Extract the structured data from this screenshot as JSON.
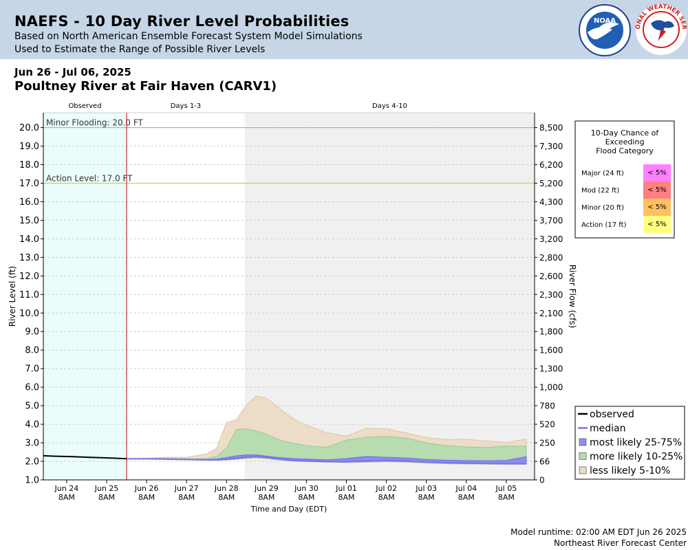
{
  "header": {
    "title": "NAEFS - 10 Day River Level Probabilities",
    "subtitle1": "Based on North American Ensemble Forecast System Model Simulations",
    "subtitle2": "Used to Estimate the Range of Possible River Levels",
    "date_range": "Jun 26 - Jul 06, 2025",
    "gauge_name": "Poultney River at Fair Haven (CARV1)",
    "noaa_logo_text": "NOAA",
    "nws_logo_text": "NATIONAL WEATHER SERVICE"
  },
  "footer": {
    "runtime": "Model runtime: 02:00 AM EDT Jun 26 2025",
    "center": "Northeast River Forecast Center"
  },
  "colors": {
    "observed_shade": "#eafcfc",
    "days4_10_shade": "#f0f0f0",
    "observed_line": "#000000",
    "median_line": "#7777ee",
    "band_25_75": "#8c8cf2",
    "band_10_25": "#b6dcb0",
    "band_5_10": "#ecdcc8",
    "minor_line": "#e8a060",
    "action_line": "#e0d020",
    "now_line": "#cc0000"
  },
  "chart_data": {
    "type": "area",
    "xlabel": "Time and Day (EDT)",
    "ylabel": "River Level (ft)",
    "ylabel_right": "River Flow (cfs)",
    "ylim": [
      1.0,
      20.8
    ],
    "xlim": [
      "2025-06-23T18:00",
      "2025-07-06T01:00"
    ],
    "grid": true,
    "period_labels": [
      {
        "label": "Observed",
        "start": "2025-06-23T18:00",
        "end": "2025-06-25T20:00"
      },
      {
        "label": "Days 1-3",
        "start": "2025-06-25T20:00",
        "end": "2025-06-28T19:00"
      },
      {
        "label": "Days 4-10",
        "start": "2025-06-28T19:00",
        "end": "2025-07-06T01:00"
      }
    ],
    "forecast_start": "2025-06-25T20:00",
    "x_ticks": [
      {
        "t": "2025-06-24T08:00",
        "day": "Jun 24",
        "hour": "8AM"
      },
      {
        "t": "2025-06-25T08:00",
        "day": "Jun 25",
        "hour": "8AM"
      },
      {
        "t": "2025-06-26T08:00",
        "day": "Jun 26",
        "hour": "8AM"
      },
      {
        "t": "2025-06-27T08:00",
        "day": "Jun 27",
        "hour": "8AM"
      },
      {
        "t": "2025-06-28T08:00",
        "day": "Jun 28",
        "hour": "8AM"
      },
      {
        "t": "2025-06-29T08:00",
        "day": "Jun 29",
        "hour": "8AM"
      },
      {
        "t": "2025-06-30T08:00",
        "day": "Jun 30",
        "hour": "8AM"
      },
      {
        "t": "2025-07-01T08:00",
        "day": "Jul 01",
        "hour": "8AM"
      },
      {
        "t": "2025-07-02T08:00",
        "day": "Jul 02",
        "hour": "8AM"
      },
      {
        "t": "2025-07-03T08:00",
        "day": "Jul 03",
        "hour": "8AM"
      },
      {
        "t": "2025-07-04T08:00",
        "day": "Jul 04",
        "hour": "8AM"
      },
      {
        "t": "2025-07-05T08:00",
        "day": "Jul 05",
        "hour": "8AM"
      }
    ],
    "y_ticks_left": [
      "1.0",
      "2.0",
      "3.0",
      "4.0",
      "5.0",
      "6.0",
      "7.0",
      "8.0",
      "9.0",
      "10.0",
      "11.0",
      "12.0",
      "13.0",
      "14.0",
      "15.0",
      "16.0",
      "17.0",
      "18.0",
      "19.0",
      "20.0"
    ],
    "y_ticks_right": [
      {
        "stage": 1.0,
        "flow": "0"
      },
      {
        "stage": 2.0,
        "flow": "66"
      },
      {
        "stage": 3.0,
        "flow": "250"
      },
      {
        "stage": 4.0,
        "flow": "520"
      },
      {
        "stage": 5.0,
        "flow": "780"
      },
      {
        "stage": 6.0,
        "flow": "1,000"
      },
      {
        "stage": 7.0,
        "flow": "1,300"
      },
      {
        "stage": 8.0,
        "flow": "1,600"
      },
      {
        "stage": 9.0,
        "flow": "1,800"
      },
      {
        "stage": 10.0,
        "flow": "2,100"
      },
      {
        "stage": 11.0,
        "flow": "2,300"
      },
      {
        "stage": 12.0,
        "flow": "2,600"
      },
      {
        "stage": 13.0,
        "flow": "2,800"
      },
      {
        "stage": 14.0,
        "flow": "3,200"
      },
      {
        "stage": 15.0,
        "flow": "3,700"
      },
      {
        "stage": 16.0,
        "flow": "4,300"
      },
      {
        "stage": 17.0,
        "flow": "5,200"
      },
      {
        "stage": 18.0,
        "flow": "6,200"
      },
      {
        "stage": 19.0,
        "flow": "7,300"
      },
      {
        "stage": 20.0,
        "flow": "8,500"
      }
    ],
    "thresholds": [
      {
        "label": "Minor Flooding: 20.0 FT",
        "stage": 20.0,
        "color": "#e8a060"
      },
      {
        "label": "Action Level: 17.0 FT",
        "stage": 17.0,
        "color": "#e0d020"
      }
    ],
    "observed": {
      "name": "observed",
      "x": [
        "2025-06-23T18:00",
        "2025-06-24T00:00",
        "2025-06-24T12:00",
        "2025-06-25T00:00",
        "2025-06-25T12:00",
        "2025-06-25T20:00"
      ],
      "y": [
        2.3,
        2.28,
        2.25,
        2.21,
        2.17,
        2.14
      ]
    },
    "forecast_x": [
      "2025-06-25T20:00",
      "2025-06-26T08:00",
      "2025-06-26T20:00",
      "2025-06-27T08:00",
      "2025-06-27T20:00",
      "2025-06-28T02:00",
      "2025-06-28T08:00",
      "2025-06-28T14:00",
      "2025-06-28T20:00",
      "2025-06-29T02:00",
      "2025-06-29T08:00",
      "2025-06-29T14:00",
      "2025-06-29T20:00",
      "2025-06-30T02:00",
      "2025-06-30T08:00",
      "2025-06-30T20:00",
      "2025-07-01T08:00",
      "2025-07-01T20:00",
      "2025-07-02T08:00",
      "2025-07-02T20:00",
      "2025-07-03T08:00",
      "2025-07-03T20:00",
      "2025-07-04T08:00",
      "2025-07-04T20:00",
      "2025-07-05T08:00",
      "2025-07-05T20:00"
    ],
    "median": {
      "name": "median",
      "y": [
        2.14,
        2.14,
        2.12,
        2.1,
        2.08,
        2.08,
        2.1,
        2.17,
        2.23,
        2.26,
        2.22,
        2.14,
        2.08,
        2.04,
        2.02,
        1.99,
        1.98,
        2.02,
        2.05,
        2.02,
        1.97,
        1.93,
        1.91,
        1.89,
        1.88,
        1.88
      ]
    },
    "bands": [
      {
        "name": "less likely 5-10%",
        "color": "#ecdcc8",
        "border": "#e0c4a8",
        "low": [
          2.14,
          2.14,
          2.11,
          2.08,
          2.06,
          2.06,
          2.07,
          2.1,
          2.15,
          2.18,
          2.14,
          2.09,
          2.03,
          2.0,
          1.98,
          1.95,
          1.93,
          1.95,
          1.97,
          1.95,
          1.9,
          1.87,
          1.85,
          1.84,
          1.83,
          1.83
        ],
        "high": [
          2.14,
          2.17,
          2.22,
          2.22,
          2.4,
          2.7,
          4.1,
          4.25,
          5.05,
          5.52,
          5.4,
          5.0,
          4.55,
          4.2,
          3.95,
          3.55,
          3.36,
          3.78,
          3.75,
          3.53,
          3.28,
          3.18,
          3.19,
          3.1,
          3.02,
          3.2
        ]
      },
      {
        "name": "more likely 10-25%",
        "color": "#b6dcb0",
        "border": "#9cc896",
        "low": [
          2.14,
          2.14,
          2.11,
          2.09,
          2.07,
          2.07,
          2.08,
          2.12,
          2.18,
          2.21,
          2.17,
          2.11,
          2.05,
          2.02,
          2.0,
          1.97,
          1.95,
          1.98,
          2.0,
          1.98,
          1.93,
          1.89,
          1.87,
          1.86,
          1.85,
          1.85
        ],
        "high": [
          2.14,
          2.15,
          2.16,
          2.14,
          2.14,
          2.26,
          2.7,
          3.72,
          3.75,
          3.64,
          3.45,
          3.22,
          3.05,
          2.95,
          2.85,
          2.75,
          3.15,
          3.3,
          3.35,
          3.25,
          3.0,
          2.85,
          2.78,
          2.75,
          2.82,
          2.82
        ]
      },
      {
        "name": "most likely 25-75%",
        "color": "#8c8cf2",
        "border": "#6a6ae8",
        "low": [
          2.14,
          2.14,
          2.11,
          2.1,
          2.07,
          2.07,
          2.09,
          2.14,
          2.2,
          2.23,
          2.19,
          2.12,
          2.06,
          2.03,
          2.01,
          1.98,
          1.96,
          1.99,
          2.02,
          1.99,
          1.94,
          1.9,
          1.88,
          1.87,
          1.86,
          1.86
        ],
        "high": [
          2.14,
          2.14,
          2.13,
          2.12,
          2.1,
          2.12,
          2.2,
          2.3,
          2.35,
          2.35,
          2.28,
          2.22,
          2.18,
          2.14,
          2.12,
          2.08,
          2.15,
          2.26,
          2.22,
          2.18,
          2.1,
          2.06,
          2.04,
          2.03,
          2.05,
          2.25
        ]
      }
    ],
    "legend": {
      "placement": "bottom-right",
      "entries": [
        {
          "label": "observed",
          "kind": "line",
          "color": "#000000"
        },
        {
          "label": "median",
          "kind": "line",
          "color": "#7777ee"
        },
        {
          "label": "most likely 25-75%",
          "kind": "box",
          "color": "#8c8cf2"
        },
        {
          "label": "more likely 10-25%",
          "kind": "box",
          "color": "#b6dcb0"
        },
        {
          "label": "less likely 5-10%",
          "kind": "box",
          "color": "#ecdcc8"
        }
      ]
    },
    "exceedance_table": {
      "title_lines": [
        "10-Day Chance of",
        "Exceeding",
        "Flood Category"
      ],
      "placement": "top-right",
      "rows": [
        {
          "category": "Major (24 ft)",
          "chance": "< 5%",
          "color": "#ff80ff"
        },
        {
          "category": "Mod (22 ft)",
          "chance": "< 5%",
          "color": "#ff8080"
        },
        {
          "category": "Minor (20 ft)",
          "chance": "< 5%",
          "color": "#ffc060"
        },
        {
          "category": "Action (17 ft)",
          "chance": "< 5%",
          "color": "#ffff80"
        }
      ]
    }
  }
}
